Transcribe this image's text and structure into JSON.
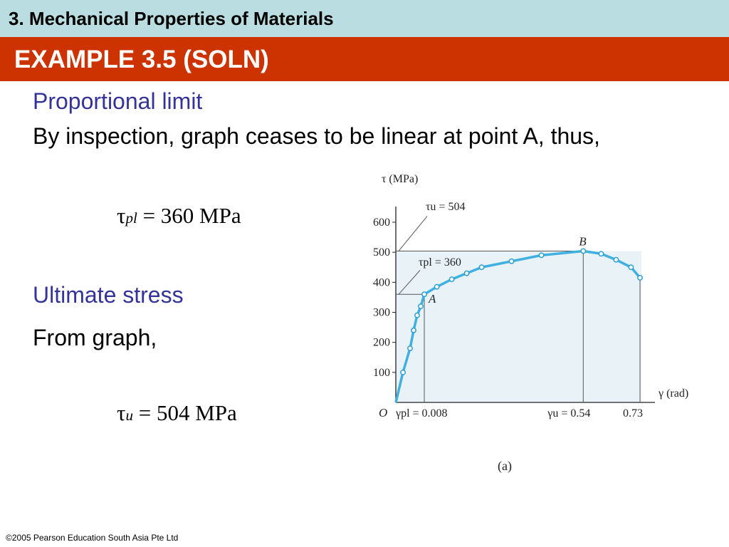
{
  "header": {
    "title": "3. Mechanical Properties of Materials"
  },
  "slide": {
    "title": "EXAMPLE 3.5 (SOLN)"
  },
  "section1": {
    "heading": "Proportional limit",
    "text": "By inspection, graph ceases to be linear at point A, thus,",
    "formula": {
      "symbol": "τ",
      "sub": "pl",
      "rhs": " = 360 MPa"
    }
  },
  "section2": {
    "heading": "Ultimate stress",
    "text": "From graph,",
    "formula": {
      "symbol": "τ",
      "sub": "u",
      "rhs": " = 504 MPa"
    }
  },
  "footer": {
    "copyright": "©2005 Pearson Education South Asia Pte Ltd"
  },
  "chart_data": {
    "type": "line",
    "ylabel": "τ (MPa)",
    "xlabel": "γ (rad)",
    "yticks": [
      100,
      200,
      300,
      400,
      500,
      600
    ],
    "ylim": [
      0,
      650
    ],
    "xlim": [
      0,
      0.78
    ],
    "origin_label": "O",
    "x_markers": [
      {
        "x": 0.008,
        "label": "γpl = 0.008"
      },
      {
        "x": 0.54,
        "label": "γu = 0.54"
      },
      {
        "x": 0.73,
        "label": "0.73"
      }
    ],
    "annotations": [
      {
        "label": "τu = 504",
        "y": 504
      },
      {
        "label": "τpl = 360",
        "y": 360
      }
    ],
    "point_labels": [
      {
        "label": "A",
        "x": 0.008,
        "y": 360
      },
      {
        "label": "B",
        "x": 0.54,
        "y": 504
      }
    ],
    "series": [
      {
        "x": [
          0,
          0.002,
          0.004,
          0.005,
          0.006,
          0.007,
          0.008,
          0.05,
          0.1,
          0.15,
          0.2,
          0.3,
          0.4,
          0.54,
          0.6,
          0.65,
          0.7,
          0.73
        ],
        "y": [
          0,
          100,
          180,
          240,
          290,
          320,
          360,
          385,
          410,
          430,
          450,
          470,
          490,
          504,
          495,
          475,
          450,
          415
        ]
      }
    ],
    "caption": "(a)"
  }
}
